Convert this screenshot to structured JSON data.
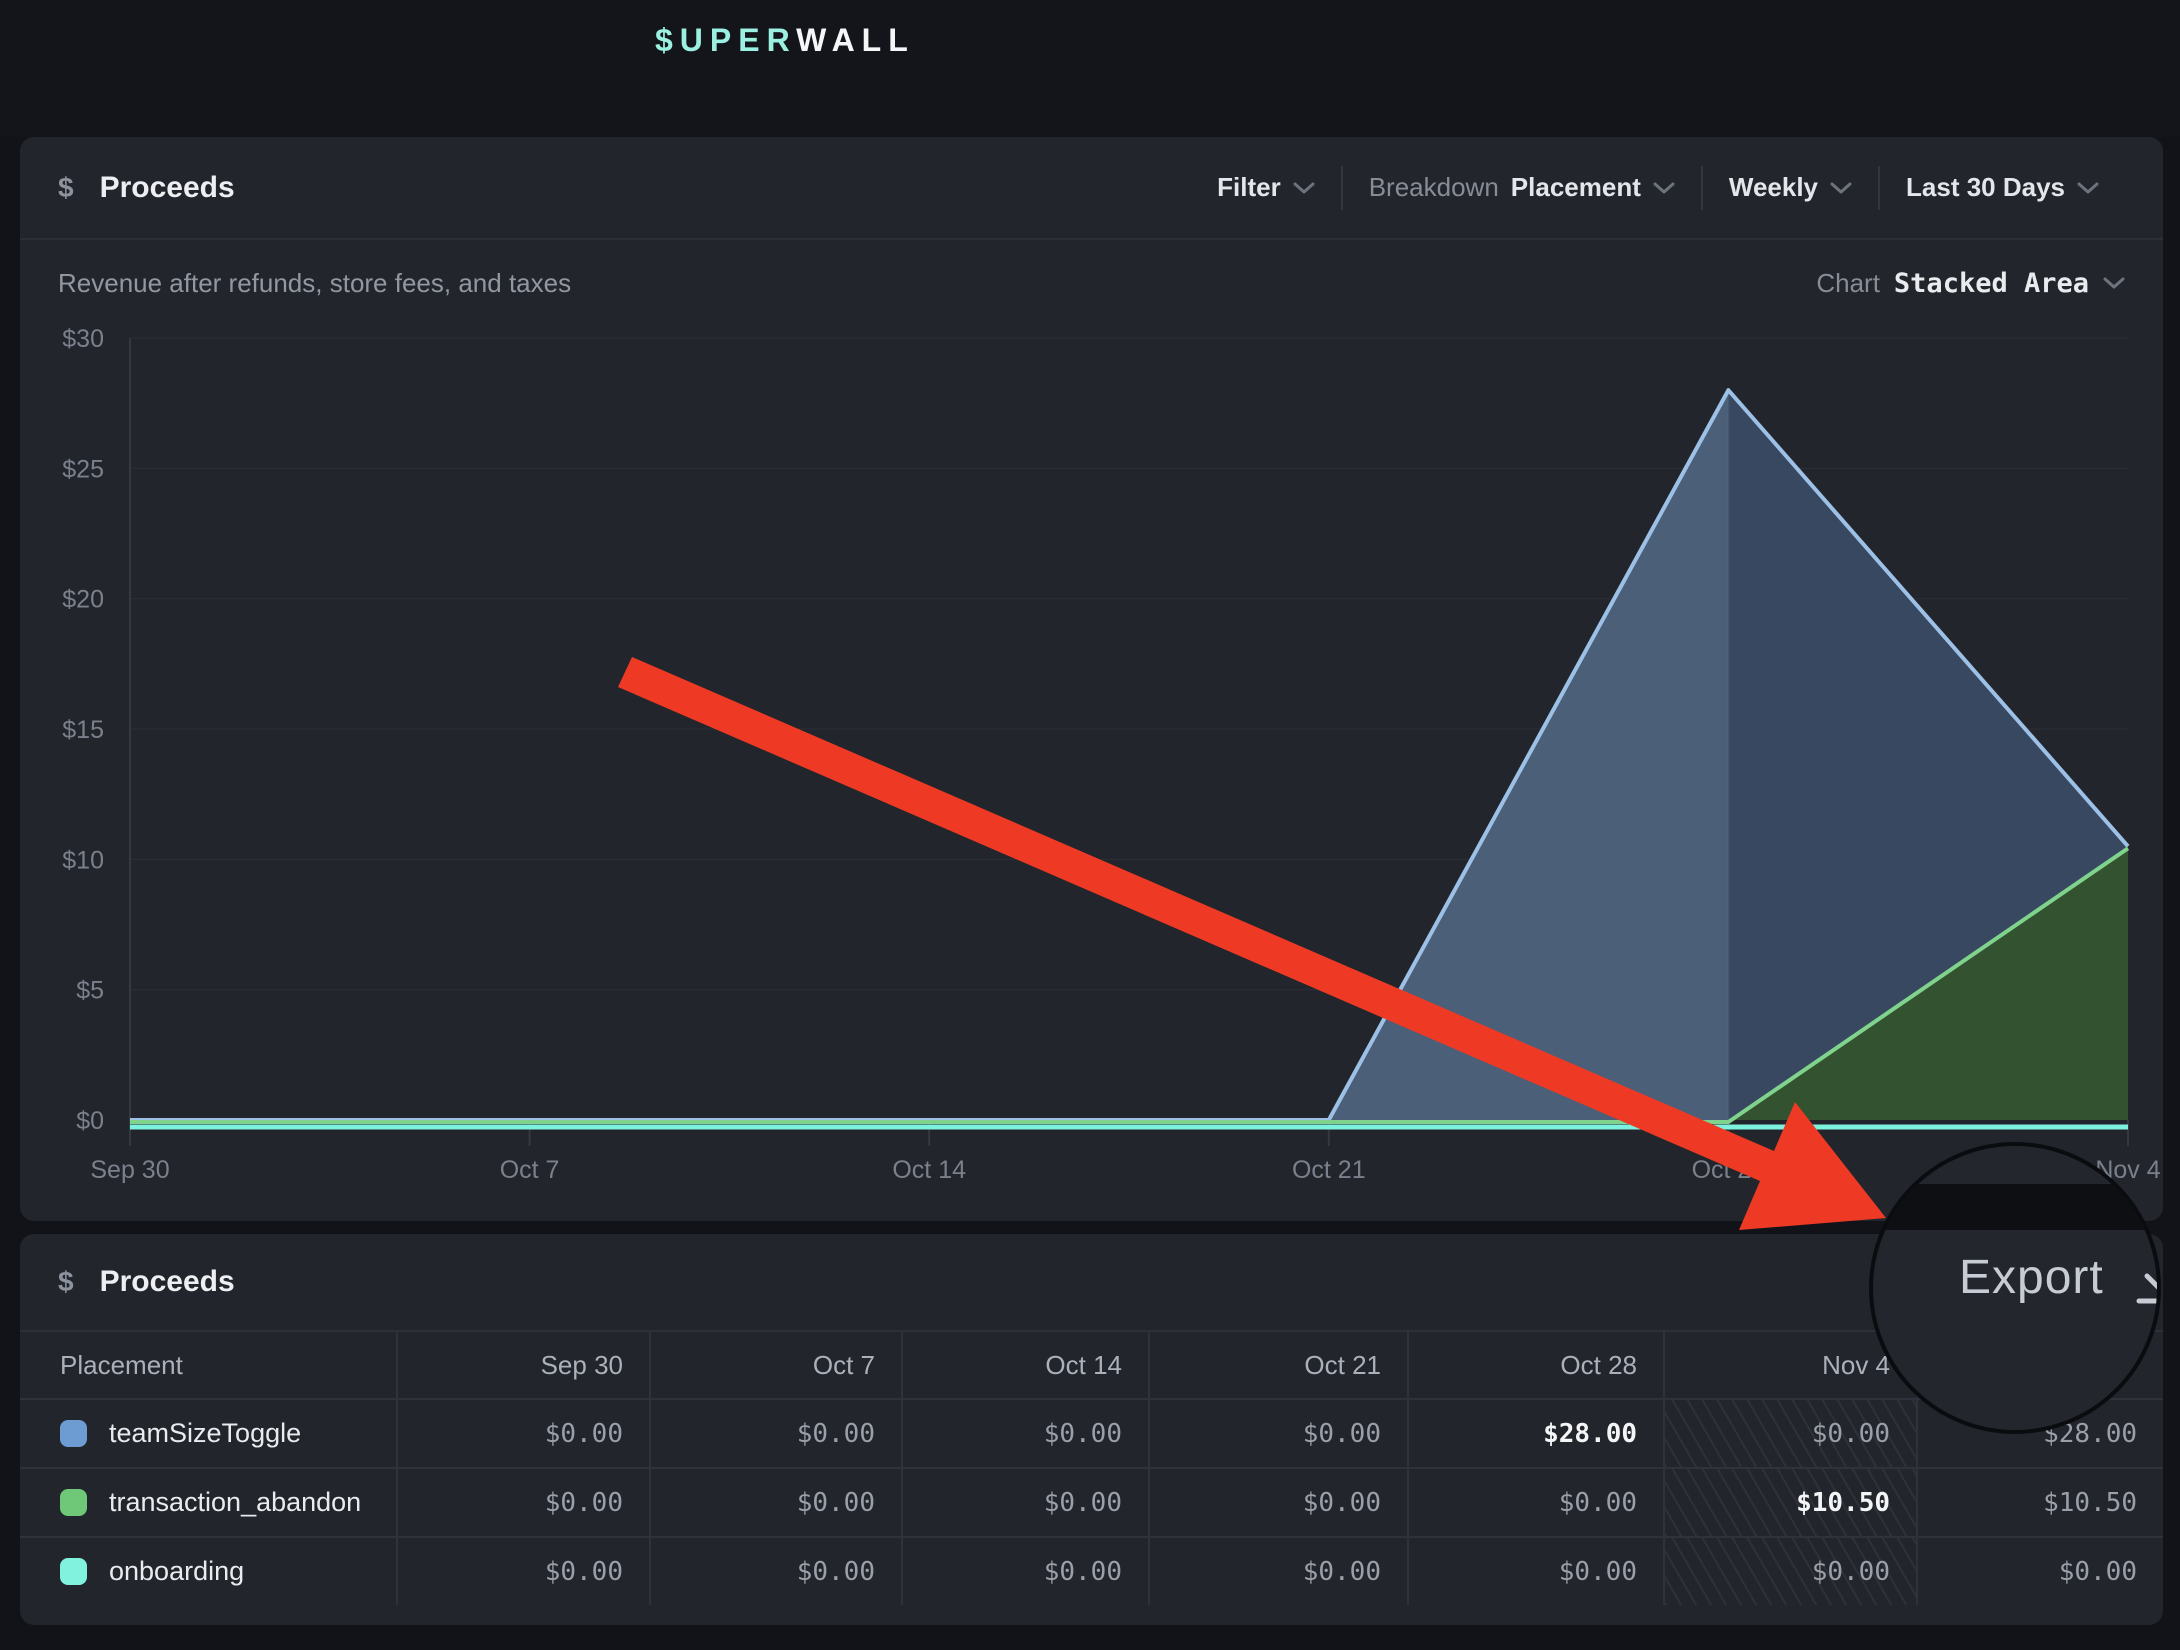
{
  "topbar": {
    "logo_prefix": "$UPER",
    "logo_suffix": "WALL"
  },
  "chart_panel": {
    "dollar_icon": "$",
    "title": "Proceeds",
    "subtitle": "Revenue after refunds, store fees, and taxes",
    "controls": {
      "filter": "Filter",
      "breakdown_label": "Breakdown",
      "breakdown_value": "Placement",
      "interval": "Weekly",
      "range": "Last 30 Days"
    },
    "chart_type_label": "Chart",
    "chart_type_value": "Stacked Area"
  },
  "chart_data": {
    "type": "area",
    "stacked": true,
    "title": "Proceeds",
    "x": [
      "Sep 30",
      "Oct 7",
      "Oct 14",
      "Oct 21",
      "Oct 28",
      "Nov 4"
    ],
    "series": [
      {
        "name": "teamSizeToggle",
        "color": "#9dc1e6",
        "fill_complete": "#4c5f78",
        "fill_incomplete": "#384860",
        "values": [
          0,
          0,
          0,
          0,
          28,
          0
        ]
      },
      {
        "name": "transaction_abandon",
        "color": "#80d38d",
        "fill": "#33522f",
        "values": [
          0,
          0,
          0,
          0,
          0,
          10.5
        ]
      },
      {
        "name": "onboarding",
        "color": "#7df2de",
        "values": [
          0,
          0,
          0,
          0,
          0,
          0
        ]
      }
    ],
    "ylim": [
      0,
      30
    ],
    "yticks": [
      "$0",
      "$5",
      "$10",
      "$15",
      "$20",
      "$25",
      "$30"
    ],
    "grid": "horizontal",
    "legend_position": "none",
    "incomplete_from_index": 4
  },
  "table_panel": {
    "dollar_icon": "$",
    "title": "Proceeds",
    "export_label": "Export",
    "columns": [
      "Placement",
      "Sep 30",
      "Oct 7",
      "Oct 14",
      "Oct 21",
      "Oct 28",
      "Nov 4",
      ""
    ],
    "incomplete_column_index": 6,
    "rows": [
      {
        "label": "teamSizeToggle",
        "swatch": "#6d9cd3",
        "values": [
          "$0.00",
          "$0.00",
          "$0.00",
          "$0.00",
          "$28.00",
          "$0.00",
          "$28.00"
        ],
        "bold": [
          4
        ]
      },
      {
        "label": "transaction_abandon",
        "swatch": "#6fc878",
        "values": [
          "$0.00",
          "$0.00",
          "$0.00",
          "$0.00",
          "$0.00",
          "$10.50",
          "$10.50"
        ],
        "bold": [
          5
        ]
      },
      {
        "label": "onboarding",
        "swatch": "#80f2de",
        "values": [
          "$0.00",
          "$0.00",
          "$0.00",
          "$0.00",
          "$0.00",
          "$0.00",
          "$0.00"
        ],
        "bold": []
      }
    ]
  },
  "annotation": {
    "arrow_color": "#ee3a24"
  }
}
